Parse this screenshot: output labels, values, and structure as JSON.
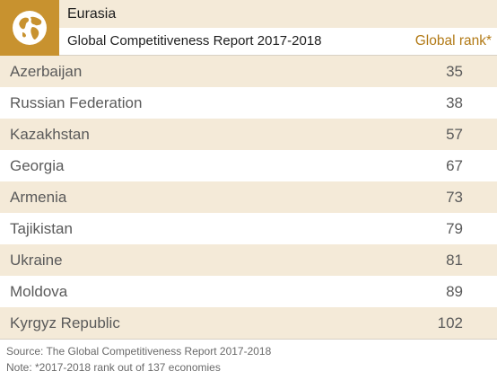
{
  "header": {
    "region": "Eurasia",
    "report_title": "Global Competitiveness Report 2017-2018",
    "rank_column": "Global rank*",
    "icon": "globe-icon"
  },
  "colors": {
    "accent": "#c8922f",
    "stripe": "#f4ead8",
    "rank_header": "#b27a16"
  },
  "chart_data": {
    "type": "table",
    "columns": [
      "",
      "Global rank*"
    ],
    "rows": [
      {
        "country": "Azerbaijan",
        "rank": 35
      },
      {
        "country": "Russian Federation",
        "rank": 38
      },
      {
        "country": "Kazakhstan",
        "rank": 57
      },
      {
        "country": "Georgia",
        "rank": 67
      },
      {
        "country": "Armenia",
        "rank": 73
      },
      {
        "country": "Tajikistan",
        "rank": 79
      },
      {
        "country": "Ukraine",
        "rank": 81
      },
      {
        "country": "Moldova",
        "rank": 89
      },
      {
        "country": "Kyrgyz Republic",
        "rank": 102
      }
    ]
  },
  "footer": {
    "source": "Source: The Global Competitiveness Report 2017-2018",
    "note": "Note: *2017-2018 rank out of 137 economies"
  }
}
